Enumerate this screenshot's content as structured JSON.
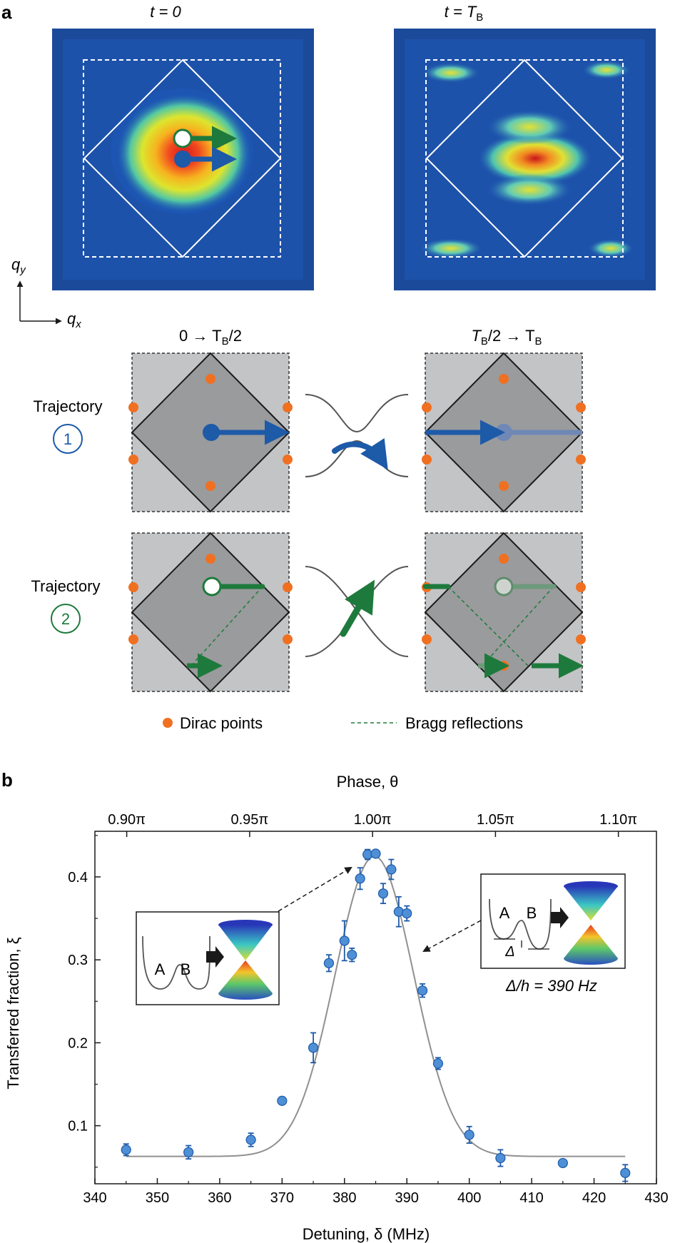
{
  "panel_a": {
    "letter": "a",
    "image_left_title": "t = 0",
    "image_right_title_main": "t = T",
    "image_right_title_sub": "B",
    "axis_qy": "q",
    "axis_qy_sub": "y",
    "axis_qx": "q",
    "axis_qx_sub": "x",
    "col_left_title": "0 → T",
    "col_left_title_sub": "B",
    "col_left_title_end": "/2",
    "col_right_title_start": "T",
    "col_right_title_sub": "B",
    "col_right_title_mid": "/2 → T",
    "col_right_title_sub2": "B",
    "trajectory_1_label": "Trajectory",
    "trajectory_1_number": "1",
    "trajectory_2_label": "Trajectory",
    "trajectory_2_number": "2",
    "legend_dirac": "Dirac points",
    "legend_bragg": "Bragg reflections",
    "colors": {
      "trajectory_1": "#1d5aa8",
      "trajectory_2": "#1e7a3c",
      "dirac": "#f07022",
      "outer_square": "#c3c4c6",
      "inner_diamond": "#9a9b9d"
    }
  },
  "panel_b": {
    "letter": "b",
    "top_axis_title": "Phase, θ",
    "left_axis_title": "Transferred fraction, ξ",
    "bottom_axis_title": "Detuning, δ (MHz)",
    "inset_left_A": "A",
    "inset_left_B": "B",
    "inset_right_A": "A",
    "inset_right_B": "B",
    "inset_right_delta": "Δ",
    "annotation": "Δ/h = 390 Hz"
  },
  "chart_data": {
    "type": "scatter",
    "xlabel": "Detuning, δ (MHz)",
    "ylabel": "Transferred fraction, ξ",
    "x2label": "Phase, θ",
    "xlim": [
      340,
      430
    ],
    "ylim": [
      0.03,
      0.455
    ],
    "x_ticks": [
      340,
      350,
      360,
      370,
      380,
      390,
      400,
      410,
      420,
      430
    ],
    "y_ticks": [
      0.1,
      0.2,
      0.3,
      0.4
    ],
    "y_tick_labels": [
      "0.1",
      "0.2",
      "0.3",
      "0.4"
    ],
    "top_ticks": [
      {
        "x": 345.1,
        "label": "0.90π"
      },
      {
        "x": 364.8,
        "label": "0.95π"
      },
      {
        "x": 384.5,
        "label": "1.00π"
      },
      {
        "x": 404.2,
        "label": "1.05π"
      },
      {
        "x": 423.9,
        "label": "1.10π"
      }
    ],
    "grid": false,
    "points": [
      {
        "x": 345,
        "y": 0.071,
        "err": 0.007
      },
      {
        "x": 355,
        "y": 0.068,
        "err": 0.008
      },
      {
        "x": 365,
        "y": 0.083,
        "err": 0.008
      },
      {
        "x": 370,
        "y": 0.13,
        "err": 0.0
      },
      {
        "x": 375,
        "y": 0.194,
        "err": 0.018
      },
      {
        "x": 377.5,
        "y": 0.296,
        "err": 0.01
      },
      {
        "x": 380,
        "y": 0.323,
        "err": 0.024
      },
      {
        "x": 381.2,
        "y": 0.306,
        "err": 0.008
      },
      {
        "x": 382.5,
        "y": 0.398,
        "err": 0.013
      },
      {
        "x": 383.7,
        "y": 0.427,
        "err": 0.006
      },
      {
        "x": 385,
        "y": 0.428,
        "err": 0.0
      },
      {
        "x": 386.2,
        "y": 0.38,
        "err": 0.012
      },
      {
        "x": 387.5,
        "y": 0.409,
        "err": 0.012
      },
      {
        "x": 388.7,
        "y": 0.358,
        "err": 0.018
      },
      {
        "x": 390,
        "y": 0.356,
        "err": 0.009
      },
      {
        "x": 392.5,
        "y": 0.263,
        "err": 0.008
      },
      {
        "x": 395,
        "y": 0.175,
        "err": 0.007
      },
      {
        "x": 400,
        "y": 0.089,
        "err": 0.01
      },
      {
        "x": 405,
        "y": 0.061,
        "err": 0.01
      },
      {
        "x": 415,
        "y": 0.055,
        "err": 0.0
      },
      {
        "x": 425,
        "y": 0.043,
        "err": 0.01
      }
    ],
    "fit": {
      "baseline": 0.063,
      "amplitude": 0.362,
      "center": 384.8,
      "sigma": 6.3
    },
    "colors": {
      "points": "#4f8fd6",
      "error_bars": "#1d5aa8",
      "fit": "#909090"
    }
  }
}
